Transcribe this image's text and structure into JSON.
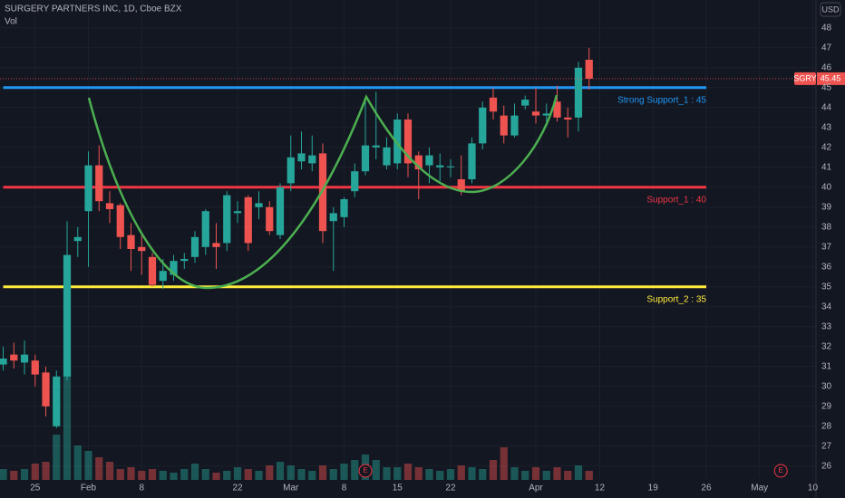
{
  "chart_data": {
    "type": "candlestick",
    "title": "SURGERY PARTNERS INC, 1D, Cboe BZX",
    "volume_label": "Vol",
    "currency": "USD",
    "symbol": "SGRY",
    "up_color": "#26a69a",
    "down_color": "#ef5350",
    "grid": true,
    "x": [
      0,
      1,
      2,
      3,
      4,
      5,
      6,
      7,
      8,
      9,
      10,
      11,
      12,
      13,
      14,
      15,
      16,
      17,
      18,
      19,
      20,
      21,
      22,
      23,
      24,
      25,
      26,
      27,
      28,
      29,
      30,
      31,
      32,
      33,
      34,
      35,
      36,
      37,
      38,
      39,
      40,
      41,
      42,
      43,
      44,
      45,
      46,
      47,
      48,
      49,
      50,
      51,
      52,
      53,
      54,
      55
    ],
    "open": [
      31.1,
      31.6,
      31.2,
      31.3,
      30.7,
      28.0,
      30.5,
      37.3,
      38.8,
      41.1,
      39.2,
      39.1,
      37.6,
      37.0,
      36.5,
      35.3,
      35.6,
      36.3,
      36.5,
      37.0,
      37.2,
      37.2,
      38.7,
      39.5,
      39.0,
      39.0,
      37.6,
      40.2,
      41.3,
      41.2,
      41.7,
      38.3,
      38.5,
      39.8,
      40.8,
      42.0,
      41.1,
      41.2,
      43.4,
      41.6,
      41.1,
      41.0,
      41.0,
      40.4,
      40.4,
      42.2,
      44.5,
      43.6,
      42.6,
      44.1,
      43.8,
      43.6,
      44.3,
      43.5,
      43.5,
      46.4
    ],
    "high": [
      32.0,
      32.2,
      32.3,
      31.6,
      31.0,
      30.8,
      38.3,
      38.0,
      41.8,
      42.1,
      39.8,
      39.2,
      38.2,
      37.6,
      36.7,
      36.4,
      36.6,
      36.7,
      37.8,
      38.9,
      38.2,
      39.8,
      39.3,
      39.6,
      39.8,
      39.3,
      40.2,
      42.6,
      42.8,
      42.6,
      42.2,
      39.0,
      39.5,
      41.2,
      44.3,
      44.8,
      42.5,
      43.7,
      43.7,
      41.8,
      42.0,
      41.7,
      41.4,
      41.6,
      42.5,
      44.3,
      45.0,
      44.1,
      44.2,
      44.6,
      45.0,
      44.2,
      45.1,
      44.0,
      46.3,
      47.0
    ],
    "low": [
      30.8,
      30.9,
      30.6,
      30.0,
      28.5,
      27.9,
      30.3,
      36.5,
      36.0,
      38.8,
      38.2,
      36.9,
      35.8,
      35.6,
      35.0,
      34.9,
      35.3,
      35.9,
      36.2,
      36.6,
      35.9,
      36.8,
      38.2,
      36.8,
      38.4,
      37.6,
      37.4,
      39.8,
      40.9,
      40.8,
      37.2,
      35.8,
      38.0,
      39.5,
      40.6,
      41.4,
      40.9,
      40.9,
      40.5,
      39.4,
      40.2,
      40.3,
      40.5,
      39.6,
      40.2,
      41.9,
      43.4,
      42.2,
      42.5,
      43.9,
      43.2,
      43.3,
      43.3,
      42.5,
      42.8,
      44.9
    ],
    "close": [
      31.4,
      31.3,
      31.6,
      30.6,
      29.0,
      30.5,
      36.6,
      37.5,
      41.1,
      39.3,
      38.9,
      37.5,
      36.9,
      36.8,
      35.1,
      35.8,
      36.3,
      36.4,
      37.5,
      38.8,
      37.0,
      39.6,
      38.8,
      37.2,
      39.2,
      37.8,
      40.0,
      41.5,
      41.7,
      41.6,
      37.8,
      38.7,
      39.4,
      40.8,
      42.1,
      42.1,
      42.0,
      43.4,
      41.2,
      40.9,
      41.6,
      41.1,
      41.05,
      39.8,
      42.2,
      44.0,
      43.8,
      42.6,
      43.6,
      44.4,
      43.6,
      43.7,
      43.5,
      43.4,
      46.0,
      45.45
    ],
    "volume": [
      12,
      10,
      12,
      18,
      20,
      50,
      132,
      38,
      32,
      25,
      20,
      12,
      14,
      10,
      12,
      10,
      8,
      12,
      18,
      12,
      8,
      10,
      14,
      12,
      10,
      16,
      20,
      16,
      12,
      10,
      16,
      12,
      18,
      22,
      28,
      22,
      14,
      14,
      18,
      14,
      12,
      10,
      12,
      16,
      14,
      12,
      22,
      36,
      14,
      10,
      14,
      10,
      14,
      10,
      16,
      10
    ],
    "xlim": [
      -0.3,
      76.3
    ],
    "xticks": [
      {
        "value": 3,
        "label": "25"
      },
      {
        "value": 8,
        "label": "Feb"
      },
      {
        "value": 13,
        "label": "8"
      },
      {
        "value": 22,
        "label": "22"
      },
      {
        "value": 27,
        "label": "Mar"
      },
      {
        "value": 32,
        "label": "8"
      },
      {
        "value": 37,
        "label": "15"
      },
      {
        "value": 42,
        "label": "22"
      },
      {
        "value": 50,
        "label": "Apr"
      },
      {
        "value": 56,
        "label": "12"
      },
      {
        "value": 61,
        "label": "19"
      },
      {
        "value": 66,
        "label": "26"
      },
      {
        "value": 71,
        "label": "May"
      },
      {
        "value": 76,
        "label": "10"
      }
    ],
    "ylim": [
      25.4,
      49.4
    ],
    "yticks": [
      26,
      27,
      28,
      29,
      30,
      31,
      32,
      33,
      34,
      35,
      36,
      37,
      38,
      39,
      40,
      41,
      42,
      43,
      44,
      45,
      46,
      47,
      48
    ],
    "levels": [
      {
        "value": 45,
        "label": "Strong Support_1 : 45",
        "color": "#2196f3",
        "from": 0,
        "to": 66
      },
      {
        "value": 40,
        "label": "Support_1 : 40",
        "color": "#f23645",
        "from": 0,
        "to": 66
      },
      {
        "value": 35,
        "label": "Support_2 : 35",
        "color": "#ffeb3b",
        "from": 0,
        "to": 66
      }
    ],
    "earnings": [
      {
        "x": 34,
        "label": "E"
      },
      {
        "x": 73,
        "label": "E"
      }
    ]
  }
}
